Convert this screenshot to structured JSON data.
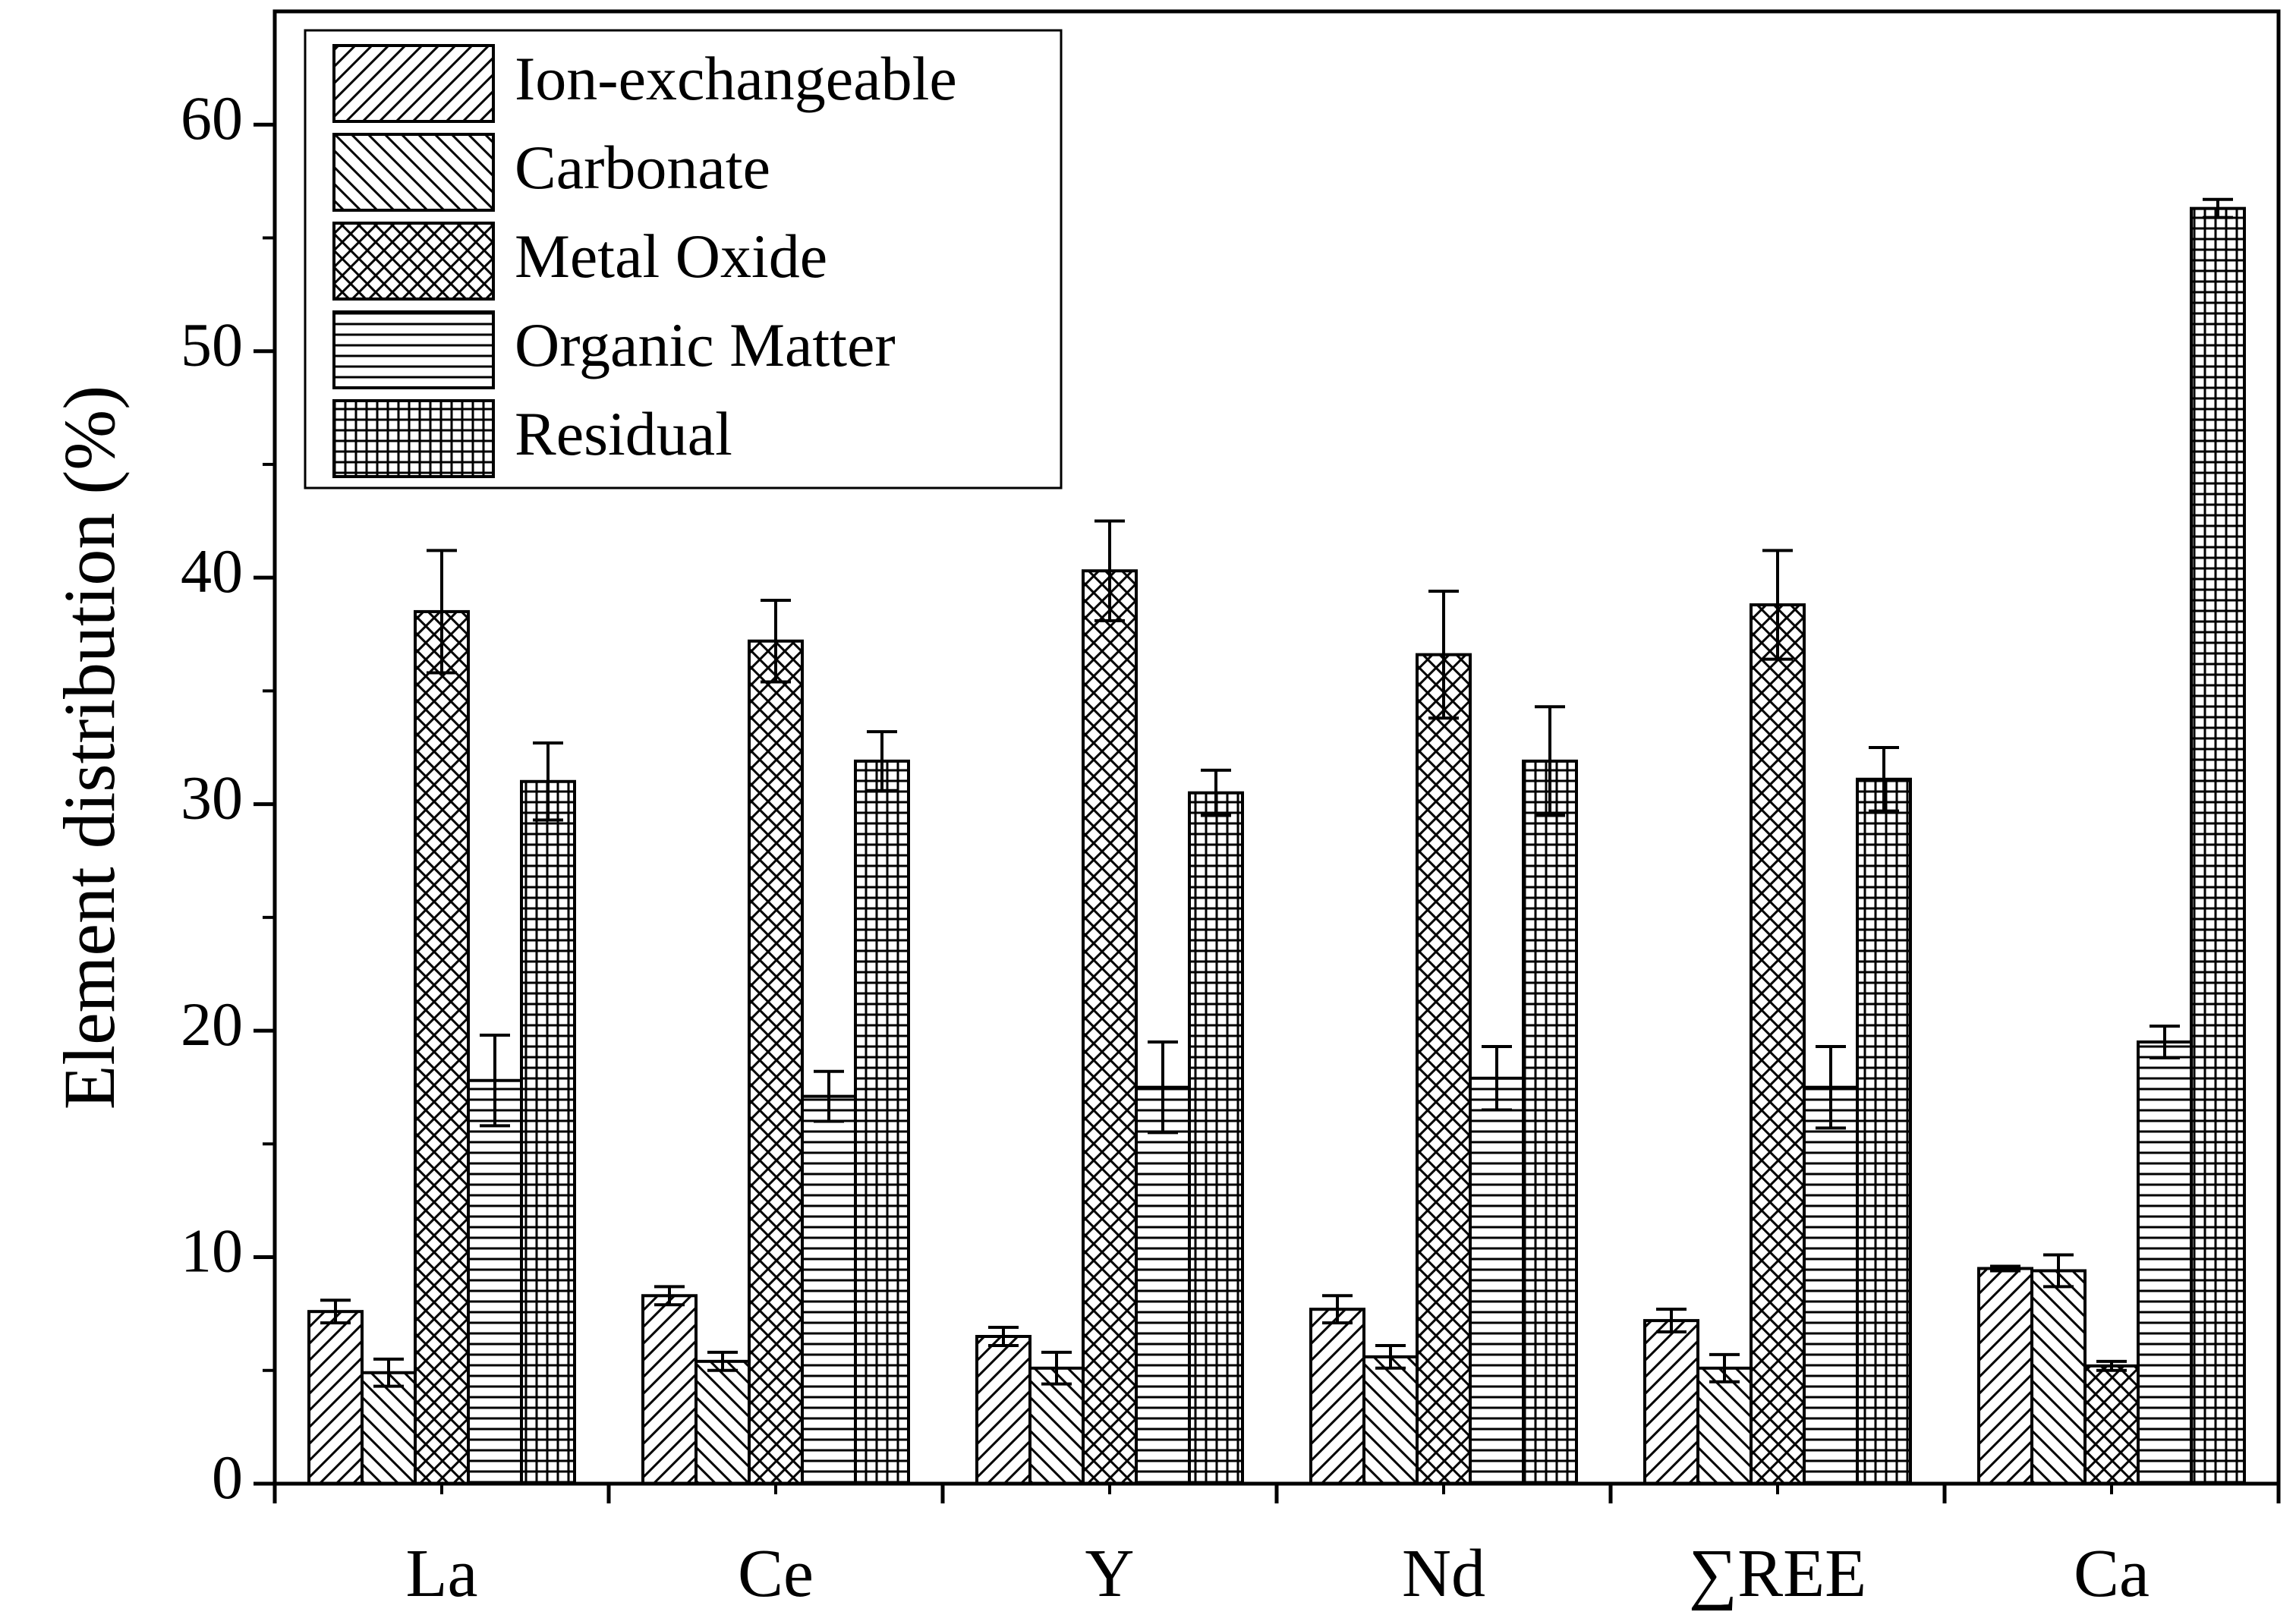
{
  "chart_data": {
    "type": "bar",
    "title": "",
    "xlabel": "",
    "ylabel": "Element distribution (%)",
    "ylim": [
      0,
      65
    ],
    "yticks": [
      "0",
      "10",
      "20",
      "30",
      "40",
      "50",
      "60"
    ],
    "categories": [
      "La",
      "Ce",
      "Y",
      "Nd",
      "∑REE",
      "Ca"
    ],
    "legend_position": "top-left",
    "series": [
      {
        "name": "Ion-exchangeable",
        "pattern": "hatch-forward",
        "values": [
          7.6,
          8.3,
          6.5,
          7.7,
          7.2,
          9.5
        ],
        "errors": [
          0.5,
          0.4,
          0.4,
          0.6,
          0.5,
          0.1
        ]
      },
      {
        "name": "Carbonate",
        "pattern": "hatch-back",
        "values": [
          4.9,
          5.4,
          5.1,
          5.6,
          5.1,
          9.4
        ],
        "errors": [
          0.6,
          0.4,
          0.7,
          0.5,
          0.6,
          0.7
        ]
      },
      {
        "name": "Metal Oxide",
        "pattern": "crosshatch",
        "values": [
          38.5,
          37.2,
          40.3,
          36.6,
          38.8,
          5.2
        ],
        "errors": [
          2.7,
          1.8,
          2.2,
          2.8,
          2.4,
          0.2
        ]
      },
      {
        "name": "Organic Matter",
        "pattern": "horizontal",
        "values": [
          17.8,
          17.1,
          17.5,
          17.9,
          17.5,
          19.5
        ],
        "errors": [
          2.0,
          1.1,
          2.0,
          1.4,
          1.8,
          0.7
        ]
      },
      {
        "name": "Residual",
        "pattern": "grid",
        "values": [
          31.0,
          31.9,
          30.5,
          31.9,
          31.1,
          56.3
        ],
        "errors": [
          1.7,
          1.3,
          1.0,
          2.4,
          1.4,
          0.4
        ]
      }
    ]
  }
}
